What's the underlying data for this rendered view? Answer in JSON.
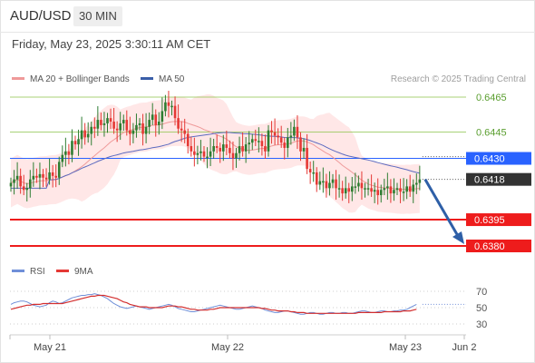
{
  "header": {
    "pair": "AUD/USD",
    "timeframe": "30 MIN"
  },
  "timestamp": "Friday, May 23, 2025 3:30:11 AM CET",
  "legend": {
    "ma20_label": "MA 20 + Bollinger Bands",
    "ma50_label": "MA 50",
    "rsi_label": "RSI",
    "rsi_ma_label": "9MA",
    "source": "Research © 2025 Trading Central"
  },
  "colors": {
    "up": "#2e7d32",
    "down": "#e53935",
    "ma20": "#ef9a9a",
    "band": "#ffe3e3",
    "ma50": "#5c6bc0",
    "pivot": "#2962ff",
    "support": "#ee1c1c",
    "resistance": "#8bc34a",
    "last": "#333333",
    "arrow": "#2e5fa7",
    "rsi": "#6f8fd8",
    "rsi_ma": "#d32f2f"
  },
  "chart_data": [
    {
      "type": "candlestick",
      "x_ticks": [
        "May 21",
        "May 22",
        "May 23",
        "Jun 2"
      ],
      "ylim": [
        0.6372,
        0.649
      ],
      "levels": [
        {
          "value": 0.6465,
          "label": "0.6465",
          "kind": "resistance"
        },
        {
          "value": 0.6445,
          "label": "0.6445",
          "kind": "resistance"
        },
        {
          "value": 0.643,
          "label": "0.6430",
          "kind": "pivot"
        },
        {
          "value": 0.6418,
          "label": "0.6418",
          "kind": "last"
        },
        {
          "value": 0.6395,
          "label": "0.6395",
          "kind": "support"
        },
        {
          "value": 0.638,
          "label": "0.6380",
          "kind": "support"
        }
      ],
      "forecast": {
        "from": 0.6418,
        "to": 0.638
      },
      "closes": [
        0.6416,
        0.6418,
        0.642,
        0.6414,
        0.6412,
        0.6413,
        0.6418,
        0.642,
        0.6419,
        0.6421,
        0.6419,
        0.6418,
        0.6422,
        0.642,
        0.6419,
        0.6428,
        0.6432,
        0.6434,
        0.6432,
        0.644,
        0.6438,
        0.6441,
        0.6446,
        0.6442,
        0.6444,
        0.6448,
        0.6447,
        0.6452,
        0.6449,
        0.645,
        0.6453,
        0.6451,
        0.6447,
        0.6446,
        0.645,
        0.6452,
        0.6446,
        0.6444,
        0.6446,
        0.6449,
        0.645,
        0.6444,
        0.6448,
        0.6452,
        0.6455,
        0.6449,
        0.6451,
        0.6457,
        0.6462,
        0.646,
        0.646,
        0.6453,
        0.6447,
        0.6446,
        0.6444,
        0.6437,
        0.6434,
        0.6432,
        0.6433,
        0.6434,
        0.6431,
        0.6431,
        0.6434,
        0.6437,
        0.6436,
        0.6434,
        0.6438,
        0.6436,
        0.6433,
        0.643,
        0.6433,
        0.6437,
        0.6434,
        0.6438,
        0.6439,
        0.6441,
        0.644,
        0.644,
        0.6437,
        0.6434,
        0.6446,
        0.6445,
        0.6443,
        0.6442,
        0.6439,
        0.6436,
        0.6442,
        0.6443,
        0.6448,
        0.6442,
        0.6434,
        0.6436,
        0.6424,
        0.6422,
        0.6422,
        0.6415,
        0.6417,
        0.6417,
        0.6413,
        0.6416,
        0.6418,
        0.6413,
        0.6413,
        0.641,
        0.6413,
        0.6411,
        0.6414,
        0.6414,
        0.6416,
        0.6413,
        0.6413,
        0.6413,
        0.6411,
        0.6412,
        0.6409,
        0.6412,
        0.6413,
        0.6414,
        0.641,
        0.6412,
        0.6413,
        0.6411,
        0.6411,
        0.6414,
        0.6411,
        0.6415,
        0.6416,
        0.6418
      ]
    },
    {
      "type": "line",
      "name": "RSI",
      "ylim": [
        20,
        80
      ],
      "y_ticks": [
        70,
        50,
        30
      ],
      "rsi": [
        54,
        56,
        57,
        58,
        58,
        57,
        55,
        53,
        52,
        51,
        52,
        53,
        56,
        58,
        57,
        55,
        56,
        58,
        60,
        62,
        63,
        64,
        65,
        65,
        66,
        66,
        67,
        66,
        65,
        63,
        61,
        58,
        55,
        53,
        51,
        50,
        49,
        50,
        51,
        52,
        51,
        50,
        49,
        48,
        49,
        50,
        51,
        52,
        53,
        54,
        53,
        51,
        49,
        48,
        47,
        46,
        45,
        45,
        46,
        47,
        48,
        49,
        50,
        51,
        52,
        53,
        52,
        51,
        50,
        49,
        48,
        48,
        49,
        50,
        51,
        52,
        51,
        50,
        49,
        47,
        46,
        45,
        44,
        44,
        45,
        46,
        46,
        45,
        44,
        43,
        42,
        42,
        43,
        44,
        44,
        43,
        42,
        42,
        43,
        44,
        44,
        43,
        43,
        44,
        44,
        43,
        43,
        44,
        45,
        46,
        46,
        45,
        44,
        44,
        45,
        46,
        46,
        45,
        45,
        46,
        46,
        47,
        47,
        48,
        50,
        52,
        54
      ],
      "rsi_ma": [
        48,
        49,
        50,
        51,
        52,
        53,
        53,
        54,
        54,
        54,
        55,
        55,
        55,
        55,
        55,
        55,
        55,
        56,
        57,
        58,
        59,
        60,
        61,
        62,
        63,
        64,
        64,
        65,
        65,
        65,
        64,
        63,
        62,
        61,
        59,
        57,
        56,
        54,
        53,
        52,
        51,
        51,
        51,
        50,
        50,
        50,
        50,
        50,
        51,
        52,
        52,
        52,
        51,
        51,
        50,
        49,
        48,
        48,
        47,
        47,
        47,
        47,
        48,
        48,
        49,
        50,
        50,
        50,
        50,
        50,
        50,
        50,
        50,
        50,
        50,
        50,
        50,
        50,
        49,
        49,
        48,
        47,
        47,
        46,
        46,
        46,
        46,
        45,
        45,
        44,
        44,
        44,
        43,
        43,
        43,
        43,
        43,
        43,
        43,
        43,
        43,
        43,
        43,
        43,
        43,
        43,
        43,
        43,
        44,
        44,
        44,
        44,
        44,
        44,
        44,
        44,
        45,
        45,
        45,
        45,
        45,
        45,
        46,
        46,
        46,
        47,
        48
      ]
    }
  ]
}
